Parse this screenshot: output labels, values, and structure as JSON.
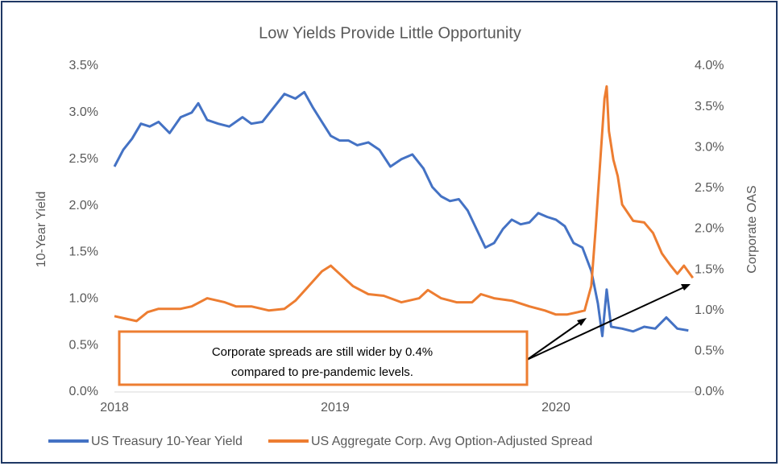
{
  "chart_data": {
    "type": "line",
    "title": "Low Yields Provide Little Opportunity",
    "ylabel": "10-Year Yield",
    "y2label": "Corporate OAS",
    "annotation": [
      "Corporate spreads are still wider by 0.4%",
      "compared to pre-pandemic levels."
    ],
    "xlim": [
      2018,
      2020.65
    ],
    "xticks": [
      2018,
      2019,
      2020
    ],
    "ylim": [
      0,
      3.5
    ],
    "yticks": [
      {
        "value": 0,
        "label": "0.0%"
      },
      {
        "value": 0.5,
        "label": "0.5%"
      },
      {
        "value": 1,
        "label": "1.0%"
      },
      {
        "value": 1.5,
        "label": "1.5%"
      },
      {
        "value": 2,
        "label": "2.0%"
      },
      {
        "value": 2.5,
        "label": "2.5%"
      },
      {
        "value": 3,
        "label": "3.0%"
      },
      {
        "value": 3.5,
        "label": "3.5%"
      }
    ],
    "y2lim": [
      0,
      4
    ],
    "y2ticks": [
      {
        "value": 0,
        "label": "0.0%"
      },
      {
        "value": 0.5,
        "label": "0.5%"
      },
      {
        "value": 1,
        "label": "1.0%"
      },
      {
        "value": 1.5,
        "label": "1.5%"
      },
      {
        "value": 2,
        "label": "2.0%"
      },
      {
        "value": 2.5,
        "label": "2.5%"
      },
      {
        "value": 3,
        "label": "3.0%"
      },
      {
        "value": 3.5,
        "label": "3.5%"
      },
      {
        "value": 4,
        "label": "4.0%"
      }
    ],
    "grid": false,
    "legend": "bottom",
    "series": [
      {
        "name": "US Treasury 10-Year Yield",
        "color": "#4472c4",
        "x": [
          2018.0,
          2018.04,
          2018.08,
          2018.12,
          2018.16,
          2018.2,
          2018.25,
          2018.3,
          2018.35,
          2018.38,
          2018.42,
          2018.47,
          2018.52,
          2018.58,
          2018.62,
          2018.67,
          2018.72,
          2018.77,
          2018.82,
          2018.86,
          2018.9,
          2018.94,
          2018.98,
          2019.02,
          2019.06,
          2019.1,
          2019.15,
          2019.2,
          2019.25,
          2019.3,
          2019.35,
          2019.4,
          2019.44,
          2019.48,
          2019.52,
          2019.56,
          2019.6,
          2019.64,
          2019.68,
          2019.72,
          2019.76,
          2019.8,
          2019.84,
          2019.88,
          2019.92,
          2019.96,
          2020.0,
          2020.04,
          2020.08,
          2020.12,
          2020.16,
          2020.19,
          2020.21,
          2020.23,
          2020.25,
          2020.3,
          2020.35,
          2020.4,
          2020.45,
          2020.5,
          2020.55,
          2020.6
        ],
        "values": [
          2.42,
          2.6,
          2.72,
          2.88,
          2.85,
          2.9,
          2.78,
          2.95,
          3.0,
          3.1,
          2.92,
          2.88,
          2.85,
          2.95,
          2.88,
          2.9,
          3.05,
          3.2,
          3.15,
          3.22,
          3.05,
          2.9,
          2.75,
          2.7,
          2.7,
          2.65,
          2.68,
          2.6,
          2.42,
          2.5,
          2.55,
          2.4,
          2.2,
          2.1,
          2.05,
          2.07,
          1.95,
          1.75,
          1.55,
          1.6,
          1.75,
          1.85,
          1.8,
          1.82,
          1.92,
          1.88,
          1.85,
          1.78,
          1.6,
          1.55,
          1.3,
          0.95,
          0.6,
          1.1,
          0.7,
          0.68,
          0.65,
          0.7,
          0.68,
          0.8,
          0.68,
          0.66
        ]
      },
      {
        "name": "US Aggregate Corp. Avg Option-Adjusted Spread",
        "color": "#ed7d31",
        "axis": "y2",
        "x": [
          2018.0,
          2018.05,
          2018.1,
          2018.15,
          2018.2,
          2018.3,
          2018.35,
          2018.42,
          2018.5,
          2018.55,
          2018.62,
          2018.7,
          2018.77,
          2018.82,
          2018.88,
          2018.94,
          2018.98,
          2019.02,
          2019.08,
          2019.15,
          2019.22,
          2019.3,
          2019.38,
          2019.42,
          2019.48,
          2019.55,
          2019.62,
          2019.66,
          2019.72,
          2019.8,
          2019.88,
          2019.95,
          2020.0,
          2020.05,
          2020.1,
          2020.13,
          2020.16,
          2020.18,
          2020.2,
          2020.22,
          2020.23,
          2020.24,
          2020.26,
          2020.28,
          2020.3,
          2020.35,
          2020.4,
          2020.44,
          2020.48,
          2020.52,
          2020.55,
          2020.58,
          2020.62
        ],
        "values": [
          0.93,
          0.9,
          0.87,
          0.98,
          1.02,
          1.02,
          1.05,
          1.15,
          1.1,
          1.05,
          1.05,
          1.0,
          1.02,
          1.12,
          1.3,
          1.48,
          1.55,
          1.45,
          1.3,
          1.2,
          1.18,
          1.1,
          1.15,
          1.25,
          1.15,
          1.1,
          1.1,
          1.2,
          1.15,
          1.12,
          1.05,
          1.0,
          0.95,
          0.95,
          0.98,
          1.0,
          1.3,
          2.0,
          2.8,
          3.6,
          3.75,
          3.2,
          2.85,
          2.65,
          2.3,
          2.1,
          2.08,
          1.95,
          1.7,
          1.55,
          1.45,
          1.55,
          1.4
        ]
      }
    ]
  }
}
